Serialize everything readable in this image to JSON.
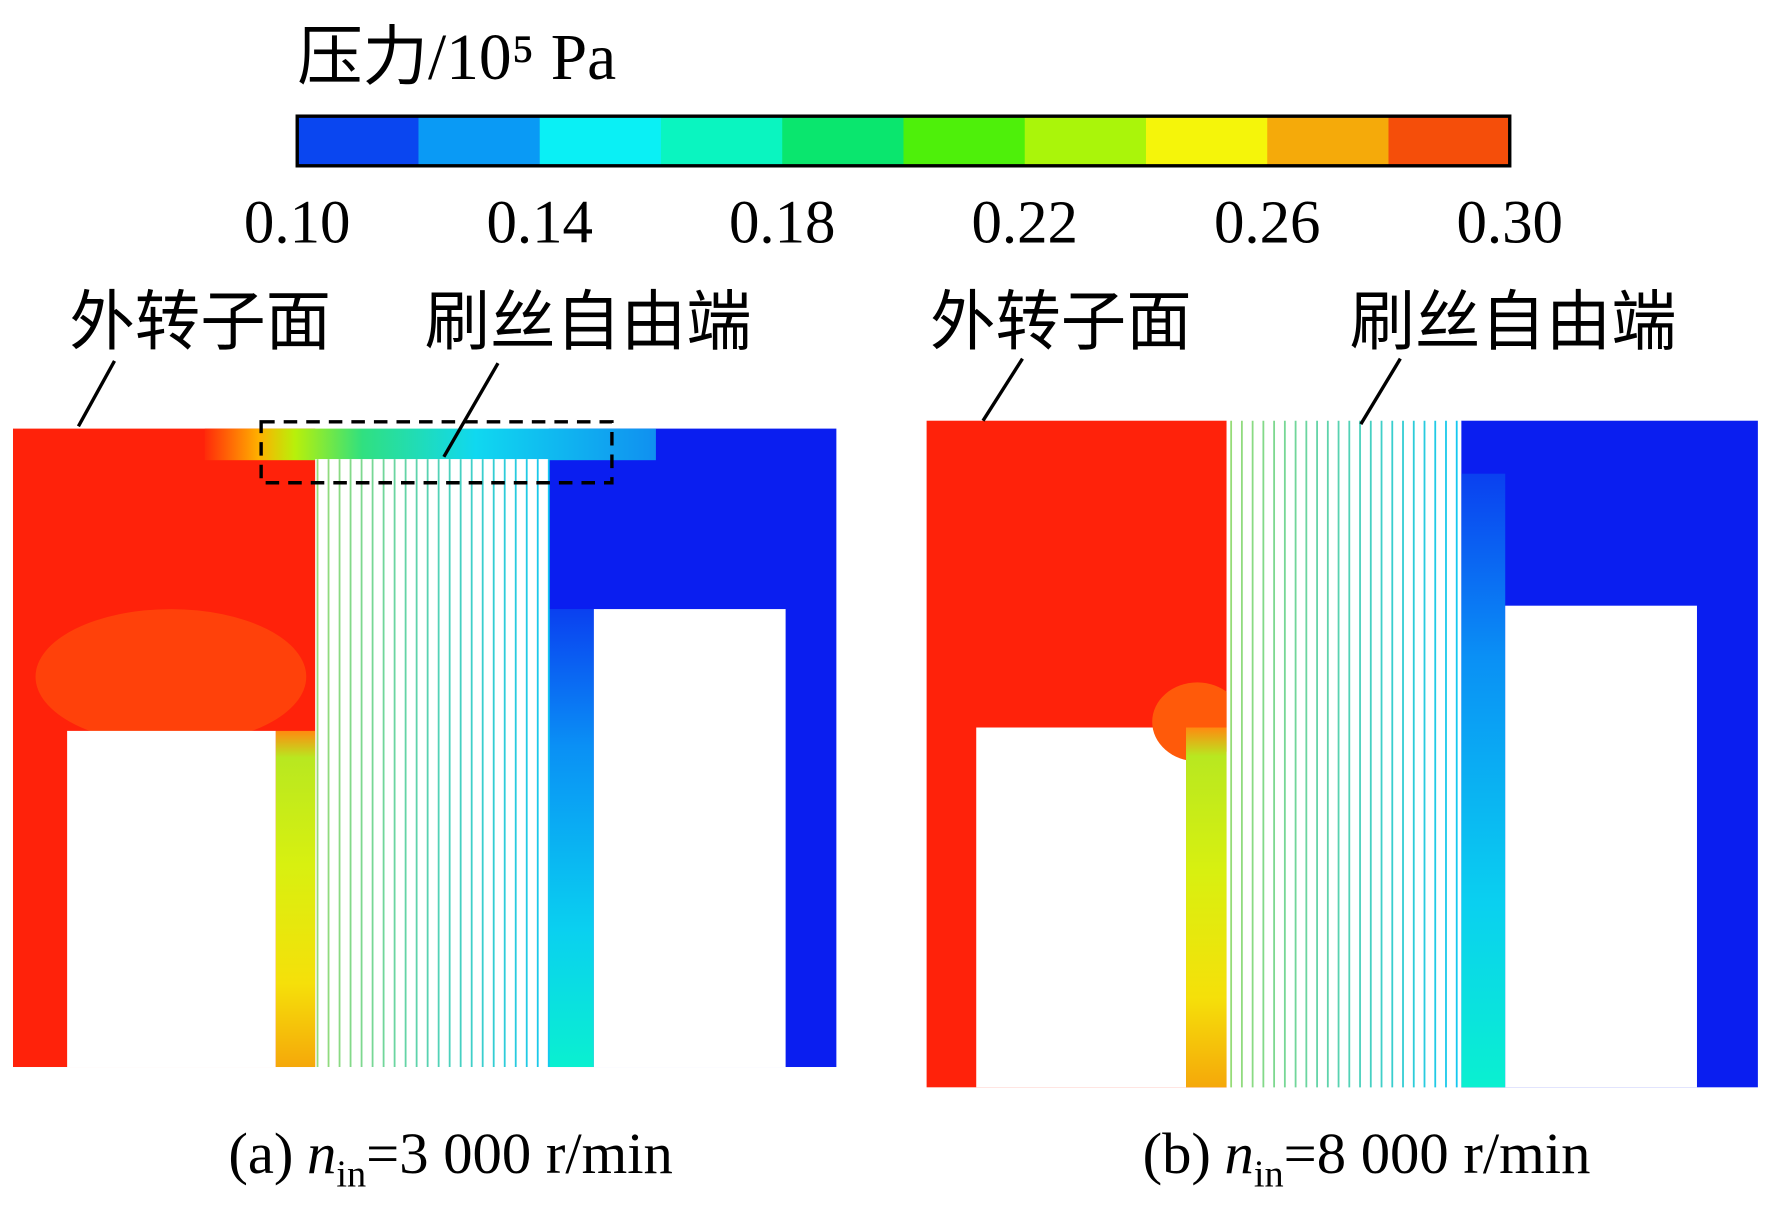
{
  "colorbar": {
    "title": "压力/10⁵ Pa",
    "colors": [
      "#0a46f0",
      "#0a9af5",
      "#0af0f5",
      "#0af5c0",
      "#0ae66e",
      "#4ef00a",
      "#aaf50a",
      "#f5f50a",
      "#f5aa0a",
      "#f54e0a"
    ],
    "ticks": [
      {
        "value": 0.1,
        "label": "0.10"
      },
      0.14,
      0.18,
      0.22,
      0.26,
      {
        "value": 0.3,
        "label": "0.30"
      }
    ]
  },
  "panels": [
    {
      "labels": [
        "外转子面",
        "刷丝自由端"
      ],
      "caption": {
        "label": "(a)",
        "symbol": "n",
        "subscript": "in",
        "text": "=3 000 r/min"
      }
    },
    {
      "labels": [
        "外转子面",
        "刷丝自由端"
      ],
      "caption": {
        "label": "(b)",
        "symbol": "n",
        "subscript": "in",
        "text": "=8 000 r/min"
      }
    }
  ]
}
